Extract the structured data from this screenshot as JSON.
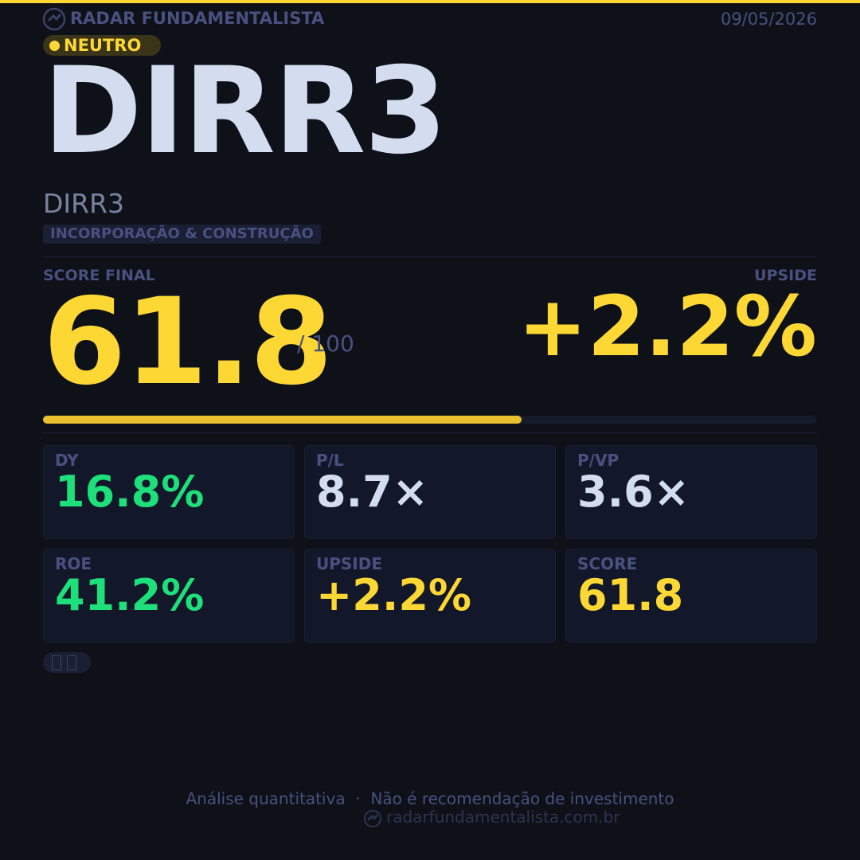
{
  "header": {
    "brand": "RADAR FUNDAMENTALISTA",
    "date": "09/05/2026",
    "badge": "NEUTRO"
  },
  "asset": {
    "ticker": "DIRR3",
    "name": "DIRR3",
    "sector": "INCORPORAÇÃO & CONSTRUÇÃO"
  },
  "score": {
    "label": "SCORE FINAL",
    "value": 61.8,
    "max": {
      "value": 100,
      "label": "/ 100"
    }
  },
  "upside": {
    "label": "UPSIDE",
    "value": "+2.2%"
  },
  "metrics": [
    {
      "label": "DY",
      "value": "16.8%",
      "color": "#1de07a"
    },
    {
      "label": "P/L",
      "value": "8.7×",
      "color": "#d4dcf0"
    },
    {
      "label": "P/VP",
      "value": "3.6×",
      "color": "#d4dcf0"
    },
    {
      "label": "ROE",
      "value": "41.2%",
      "color": "#1de07a"
    },
    {
      "label": "UPSIDE",
      "value": "+2.2%",
      "color": "#fdd835"
    },
    {
      "label": "SCORE",
      "value": "61.8",
      "color": "#fdd835"
    }
  ],
  "footer": {
    "disclaimer": "Análise quantitativa  ·  Não é recomendação de investimento",
    "url": "radarfundamentalista.com.br"
  }
}
